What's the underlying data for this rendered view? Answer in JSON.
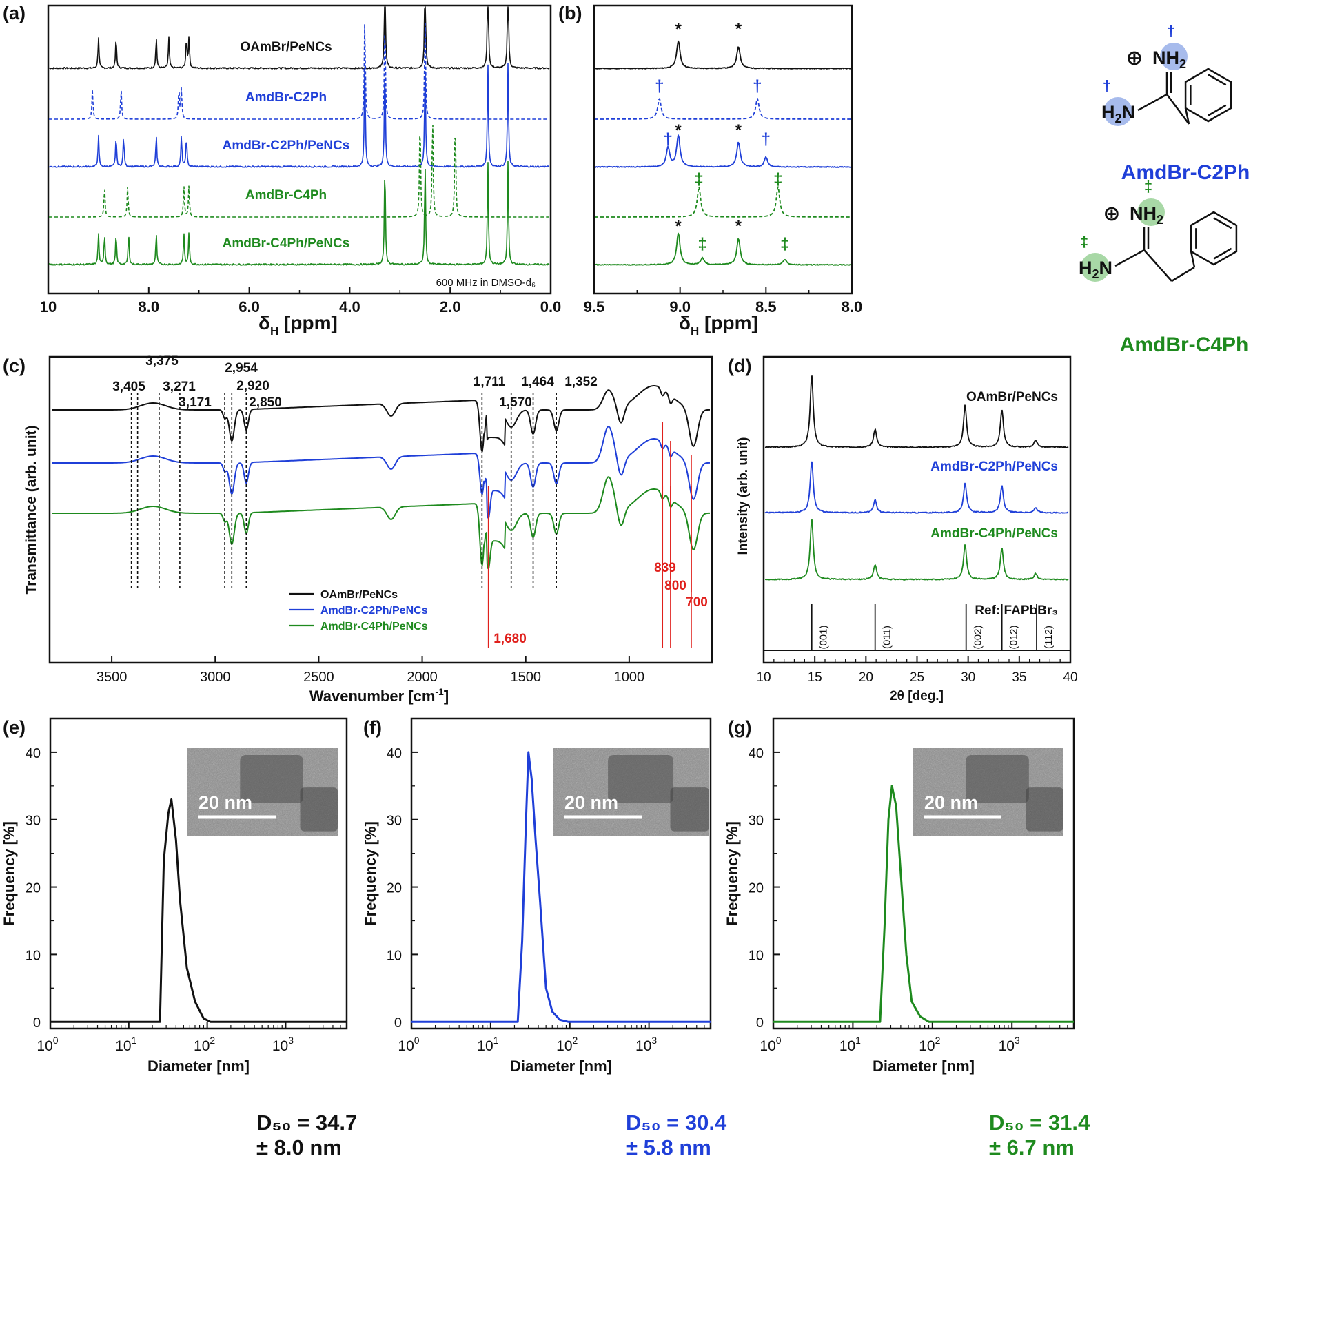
{
  "colors": {
    "black": "#111111",
    "blue": "#1f3fd8",
    "green": "#1e8a1e",
    "red": "#e0201c",
    "blueCircle": "#9db4ea",
    "greenCircle": "#9ed49c"
  },
  "panels": {
    "a": {
      "letter": "(a)",
      "xlabel_main": "δ",
      "xlabel_sub": "H",
      "xlabel_unit": " [ppm]",
      "ticks": [
        "10",
        "8.0",
        "6.0",
        "4.0",
        "2.0",
        "0.0"
      ],
      "note": "600 MHz in DMSO-d₆",
      "traces": [
        {
          "name": "OAmBr/PeNCs",
          "color": "black",
          "dashed": false
        },
        {
          "name": "AmdBr-C2Ph",
          "color": "blue",
          "dashed": true
        },
        {
          "name": "AmdBr-C2Ph/PeNCs",
          "color": "blue",
          "dashed": false
        },
        {
          "name": "AmdBr-C4Ph",
          "color": "green",
          "dashed": true
        },
        {
          "name": "AmdBr-C4Ph/PeNCs",
          "color": "green",
          "dashed": false
        }
      ]
    },
    "b": {
      "letter": "(b)",
      "xlabel_main": "δ",
      "xlabel_sub": "H",
      "xlabel_unit": " [ppm]",
      "ticks": [
        "9.5",
        "9.0",
        "8.5",
        "8.0"
      ],
      "marks": {
        "star": "*",
        "dagger": "†",
        "ddagger": "‡"
      }
    },
    "structures": {
      "c2ph": {
        "name": "AmdBr-C2Ph",
        "plus": "⊕",
        "nh2": "NH",
        "nh2_sub": "2",
        "h2n": "H",
        "h2n_sub": "2",
        "h2n_n": "N",
        "mark": "†"
      },
      "c4ph": {
        "name": "AmdBr-C4Ph",
        "plus": "⊕",
        "nh2": "NH",
        "nh2_sub": "2",
        "h2n": "H",
        "h2n_sub": "2",
        "h2n_n": "N",
        "mark": "‡"
      }
    },
    "c": {
      "letter": "(c)",
      "ylabel": "Transmittance (arb. unit)",
      "xlabel_main": "Wavenumber [cm",
      "xlabel_sup": "-1",
      "xlabel_end": "]",
      "ticks": [
        "3500",
        "3000",
        "2500",
        "2000",
        "1500",
        "1000"
      ],
      "black_labels": [
        "3,405",
        "3,375",
        "3,271",
        "3,171",
        "2,954",
        "2,920",
        "2,850",
        "1,711",
        "1,570",
        "1,464",
        "1,352"
      ],
      "red_labels": [
        "1,680",
        "839",
        "800",
        "700"
      ],
      "legend": [
        "OAmBr/PeNCs",
        "AmdBr-C2Ph/PeNCs",
        "AmdBr-C4Ph/PeNCs"
      ]
    },
    "d": {
      "letter": "(d)",
      "ylabel": "Intensity (arb. unit)",
      "xlabel": "2θ [deg.]",
      "ticks": [
        "10",
        "15",
        "20",
        "25",
        "30",
        "35",
        "40"
      ],
      "traces": [
        "OAmBr/PeNCs",
        "AmdBr-C2Ph/PeNCs",
        "AmdBr-C4Ph/PeNCs"
      ],
      "ref_label": "Ref: FAPbBr₃",
      "ref_peaks": [
        "(001)",
        "(011)",
        "(002)",
        "(012)",
        "(112)"
      ]
    },
    "e": {
      "letter": "(e)",
      "d50_line1": "D₅₀ = 34.7",
      "d50_line2": "± 8.0 nm",
      "scale": "20 nm",
      "color": "black"
    },
    "f": {
      "letter": "(f)",
      "d50_line1": "D₅₀ = 30.4",
      "d50_line2": "± 5.8 nm",
      "scale": "20 nm",
      "color": "blue"
    },
    "g": {
      "letter": "(g)",
      "d50_line1": "D₅₀ = 31.4",
      "d50_line2": "± 6.7 nm",
      "scale": "20 nm",
      "color": "green"
    },
    "dist_axes": {
      "ylabel": "Frequency [%]",
      "xlabel": "Diameter  [nm]",
      "yticks": [
        "0",
        "10",
        "20",
        "30",
        "40"
      ],
      "xtick_base": "10",
      "xtick_exps": [
        "0",
        "1",
        "2",
        "3"
      ]
    }
  },
  "chart_data": [
    {
      "type": "line",
      "title": "(a)",
      "xlabel": "δH [ppm]",
      "xlim": [
        10,
        0
      ],
      "series": [
        {
          "name": "OAmBr/PeNCs",
          "peaks_ppm": [
            9.0,
            8.65,
            7.85,
            7.6,
            7.25,
            7.2,
            3.3,
            2.5,
            1.25,
            0.85
          ]
        },
        {
          "name": "AmdBr-C2Ph",
          "peaks_ppm": [
            9.12,
            8.55,
            7.4,
            7.35,
            3.7,
            3.3,
            2.5
          ]
        },
        {
          "name": "AmdBr-C2Ph/PeNCs",
          "peaks_ppm": [
            9.0,
            8.65,
            8.5,
            7.85,
            7.35,
            7.25,
            3.7,
            3.3,
            2.5,
            1.25,
            0.85
          ]
        },
        {
          "name": "AmdBr-C4Ph",
          "peaks_ppm": [
            8.88,
            8.42,
            7.3,
            7.2,
            2.6,
            2.35,
            1.9
          ]
        },
        {
          "name": "AmdBr-C4Ph/PeNCs",
          "peaks_ppm": [
            9.0,
            8.88,
            8.65,
            8.4,
            7.85,
            7.3,
            7.2,
            3.3,
            2.5,
            1.25,
            0.85
          ]
        }
      ]
    },
    {
      "type": "line",
      "title": "(b)",
      "xlabel": "δH [ppm]",
      "xlim": [
        9.5,
        8.0
      ],
      "series": [
        {
          "name": "OAmBr/PeNCs",
          "peaks_ppm": [
            9.01,
            8.66
          ]
        },
        {
          "name": "AmdBr-C2Ph",
          "peaks_ppm": [
            9.12,
            8.55
          ]
        },
        {
          "name": "AmdBr-C2Ph/PeNCs",
          "peaks_ppm": [
            9.07,
            9.01,
            8.66,
            8.5
          ]
        },
        {
          "name": "AmdBr-C4Ph",
          "peaks_ppm": [
            8.89,
            8.43
          ]
        },
        {
          "name": "AmdBr-C4Ph/PeNCs",
          "peaks_ppm": [
            9.01,
            8.87,
            8.66,
            8.39
          ]
        }
      ]
    },
    {
      "type": "line",
      "title": "(c)",
      "xlabel": "Wavenumber [cm-1]",
      "ylabel": "Transmittance (arb. unit)",
      "xlim": [
        3800,
        600
      ],
      "marked_wavenumbers": [
        3405,
        3375,
        3271,
        3171,
        2954,
        2920,
        2850,
        1711,
        1570,
        1464,
        1352
      ],
      "red_marked_wavenumbers": [
        1680,
        839,
        800,
        700
      ],
      "series": [
        {
          "name": "OAmBr/PeNCs"
        },
        {
          "name": "AmdBr-C2Ph/PeNCs"
        },
        {
          "name": "AmdBr-C4Ph/PeNCs"
        }
      ]
    },
    {
      "type": "line",
      "title": "(d)",
      "xlabel": "2θ [deg.]",
      "ylabel": "Intensity (arb. unit)",
      "xlim": [
        10,
        40
      ],
      "series": [
        {
          "name": "OAmBr/PeNCs",
          "peaks_deg": [
            14.7,
            20.9,
            29.7,
            33.3,
            36.6
          ]
        },
        {
          "name": "AmdBr-C2Ph/PeNCs",
          "peaks_deg": [
            14.7,
            20.9,
            29.7,
            33.3,
            36.6
          ]
        },
        {
          "name": "AmdBr-C4Ph/PeNCs",
          "peaks_deg": [
            14.7,
            20.9,
            29.7,
            33.3,
            36.6
          ]
        }
      ],
      "reference": {
        "name": "Ref: FAPbBr₃",
        "positions_deg": [
          14.7,
          20.9,
          29.8,
          33.3,
          36.7
        ],
        "hkl": [
          "(001)",
          "(011)",
          "(002)",
          "(012)",
          "(112)"
        ]
      }
    },
    {
      "type": "line",
      "title": "(e)",
      "xlabel": "Diameter [nm]",
      "ylabel": "Frequency [%]",
      "xscale": "log",
      "xlim": [
        1,
        6000
      ],
      "ylim": [
        -1,
        45
      ],
      "series": [
        {
          "x": [
            1,
            25,
            28,
            32,
            35,
            40,
            45,
            55,
            70,
            90,
            110,
            6000
          ],
          "y": [
            0,
            0,
            24,
            31,
            33,
            27,
            18,
            8,
            3,
            0.5,
            0,
            0
          ]
        }
      ]
    },
    {
      "type": "line",
      "title": "(f)",
      "xlabel": "Diameter [nm]",
      "ylabel": "Frequency [%]",
      "xscale": "log",
      "xlim": [
        1,
        6000
      ],
      "ylim": [
        -1,
        45
      ],
      "series": [
        {
          "x": [
            1,
            22,
            25,
            28,
            30,
            33,
            37,
            42,
            50,
            60,
            75,
            95,
            6000
          ],
          "y": [
            0,
            0,
            12,
            30,
            40,
            36,
            27,
            18,
            5,
            1.5,
            0.3,
            0,
            0
          ]
        }
      ]
    },
    {
      "type": "line",
      "title": "(g)",
      "xlabel": "Diameter [nm]",
      "ylabel": "Frequency [%]",
      "xscale": "log",
      "xlim": [
        1,
        6000
      ],
      "ylim": [
        -1,
        45
      ],
      "series": [
        {
          "x": [
            1,
            22,
            25,
            28,
            31,
            35,
            40,
            47,
            55,
            70,
            90,
            6000
          ],
          "y": [
            0,
            0,
            14,
            30,
            35,
            32,
            22,
            10,
            3,
            0.8,
            0,
            0
          ]
        }
      ]
    }
  ]
}
